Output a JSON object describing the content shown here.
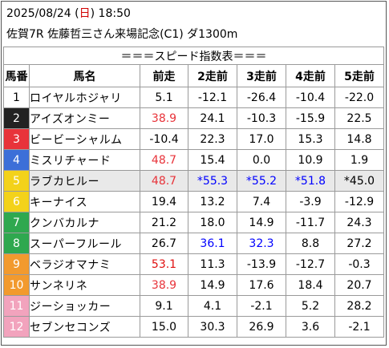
{
  "header": {
    "date": "2025/08/24",
    "dow_open": "(",
    "dow": "日",
    "dow_close": ")",
    "time": "18:50",
    "race": "佐賀7R 佐藤哲三さん来場記念(C1) ダ1300m"
  },
  "table": {
    "title": "＝＝＝スピード指数表＝＝＝",
    "columns": [
      "馬番",
      "馬名",
      "前走",
      "2走前",
      "3走前",
      "4走前",
      "5走前"
    ],
    "rows": [
      {
        "no": "1",
        "name": "ロイヤルホジャリ",
        "vals": [
          "5.1",
          "-12.1",
          "-26.4",
          "-10.4",
          "-22.0"
        ],
        "styles": [
          "",
          "",
          "",
          "",
          ""
        ],
        "badge": "#ffffff",
        "badge_text": "#000000"
      },
      {
        "no": "2",
        "name": "アイズオンミー",
        "vals": [
          "38.9",
          "24.1",
          "-10.3",
          "-15.9",
          "22.5"
        ],
        "styles": [
          "red",
          "",
          "",
          "",
          ""
        ],
        "badge": "#222222",
        "badge_text": "#ffffff"
      },
      {
        "no": "3",
        "name": "ビービーシャルム",
        "vals": [
          "-10.4",
          "22.3",
          "17.0",
          "15.3",
          "14.8"
        ],
        "styles": [
          "",
          "",
          "",
          "",
          ""
        ],
        "badge": "#e8333a",
        "badge_text": "#ffffff"
      },
      {
        "no": "4",
        "name": "ミスリチャード",
        "vals": [
          "48.7",
          "15.4",
          "0.0",
          "10.9",
          "1.9"
        ],
        "styles": [
          "red",
          "",
          "",
          "",
          ""
        ],
        "badge": "#3c6fd8",
        "badge_text": "#ffffff"
      },
      {
        "no": "5",
        "name": "ラブカヒルー",
        "vals": [
          "48.7",
          "*55.3",
          "*55.2",
          "*51.8",
          "*45.0"
        ],
        "styles": [
          "red",
          "blue-bold",
          "blue",
          "blue",
          ""
        ],
        "badge": "#f3d21a",
        "badge_text": "#ffffff",
        "highlight": true
      },
      {
        "no": "6",
        "name": "キーナイス",
        "vals": [
          "19.4",
          "13.2",
          "7.4",
          "-3.9",
          "-12.9"
        ],
        "styles": [
          "",
          "",
          "",
          "",
          ""
        ],
        "badge": "#f3d21a",
        "badge_text": "#ffffff"
      },
      {
        "no": "7",
        "name": "クンバカルナ",
        "vals": [
          "21.2",
          "18.0",
          "14.9",
          "-11.7",
          "24.3"
        ],
        "styles": [
          "",
          "",
          "",
          "",
          ""
        ],
        "badge": "#2fa84f",
        "badge_text": "#ffffff"
      },
      {
        "no": "8",
        "name": "スーパーフルール",
        "vals": [
          "26.7",
          "36.1",
          "32.3",
          "8.8",
          "27.2"
        ],
        "styles": [
          "",
          "blue",
          "blue",
          "",
          ""
        ],
        "badge": "#2fa84f",
        "badge_text": "#ffffff"
      },
      {
        "no": "9",
        "name": "ベラジオマナミ",
        "vals": [
          "53.1",
          "11.3",
          "-13.9",
          "-12.7",
          "-0.3"
        ],
        "styles": [
          "red-bold",
          "",
          "",
          "",
          ""
        ],
        "badge": "#f29a2e",
        "badge_text": "#ffffff"
      },
      {
        "no": "10",
        "name": "サンネリネ",
        "vals": [
          "38.9",
          "14.9",
          "17.6",
          "18.4",
          "20.7"
        ],
        "styles": [
          "red",
          "",
          "",
          "",
          ""
        ],
        "badge": "#f29a2e",
        "badge_text": "#ffffff"
      },
      {
        "no": "11",
        "name": "ジーショッカー",
        "vals": [
          "9.1",
          "4.1",
          "-2.1",
          "5.2",
          "28.2"
        ],
        "styles": [
          "",
          "",
          "",
          "",
          ""
        ],
        "badge": "#f2a3bd",
        "badge_text": "#ffffff"
      },
      {
        "no": "12",
        "name": "セブンセコンズ",
        "vals": [
          "15.0",
          "30.3",
          "26.9",
          "3.6",
          "-2.1"
        ],
        "styles": [
          "",
          "",
          "",
          "",
          ""
        ],
        "badge": "#f2a3bd",
        "badge_text": "#ffffff"
      }
    ]
  }
}
